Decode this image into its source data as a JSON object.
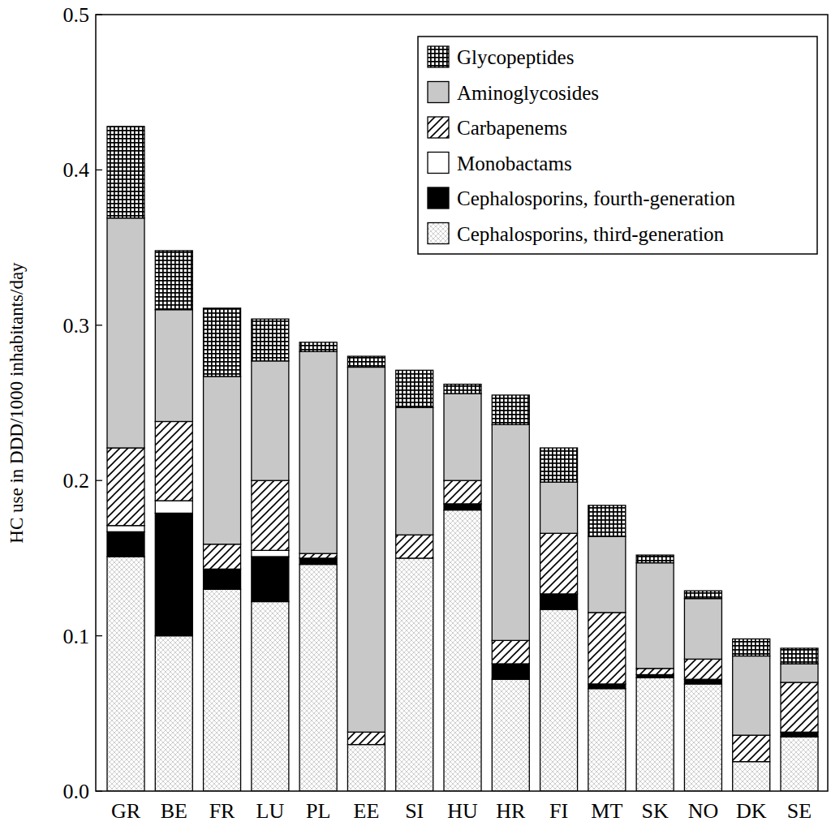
{
  "chart_data": {
    "type": "bar",
    "stacked": true,
    "y_label": "HC use in DDD/1000 inhabitants/day",
    "categories": [
      "GR",
      "BE",
      "FR",
      "LU",
      "PL",
      "EE",
      "SI",
      "HU",
      "HR",
      "FI",
      "MT",
      "SK",
      "NO",
      "DK",
      "SE"
    ],
    "series": [
      {
        "name": "Cephalosporins, third-generation",
        "color": "#c8c8c8",
        "values": [
          0.151,
          0.1,
          0.13,
          0.122,
          0.146,
          0.03,
          0.15,
          0.181,
          0.072,
          0.117,
          0.066,
          0.073,
          0.069,
          0.019,
          0.035
        ]
      },
      {
        "name": "Cephalosporins, fourth-generation",
        "color": "#000000",
        "values": [
          0.016,
          0.079,
          0.013,
          0.029,
          0.004,
          0,
          0,
          0.004,
          0.01,
          0.01,
          0.003,
          0.002,
          0.003,
          0,
          0.003
        ]
      },
      {
        "name": "Monobactams",
        "color": "#ffffff",
        "values": [
          0.004,
          0.008,
          0,
          0.004,
          0,
          0,
          0,
          0,
          0,
          0,
          0,
          0,
          0,
          0,
          0
        ]
      },
      {
        "name": "Carbapenems",
        "color": "#000000",
        "values": [
          0.05,
          0.051,
          0.016,
          0.045,
          0.003,
          0.008,
          0.015,
          0.015,
          0.015,
          0.039,
          0.046,
          0.004,
          0.013,
          0.017,
          0.032
        ]
      },
      {
        "name": "Aminoglycosides",
        "color": "#c8c8c8",
        "values": [
          0.148,
          0.072,
          0.108,
          0.077,
          0.13,
          0.235,
          0.082,
          0.056,
          0.139,
          0.033,
          0.049,
          0.068,
          0.039,
          0.051,
          0.012
        ]
      },
      {
        "name": "Glycopeptides",
        "color": "#000000",
        "values": [
          0.059,
          0.038,
          0.044,
          0.027,
          0.006,
          0.007,
          0.024,
          0.006,
          0.019,
          0.022,
          0.02,
          0.005,
          0.005,
          0.011,
          0.01
        ]
      }
    ],
    "ylim": [
      0,
      0.5
    ],
    "yticks": [
      {
        "value": 0,
        "label": "0.0"
      },
      0.1,
      0.2,
      0.3,
      0.4,
      0.5
    ],
    "legend": "upper right",
    "grid": false
  }
}
